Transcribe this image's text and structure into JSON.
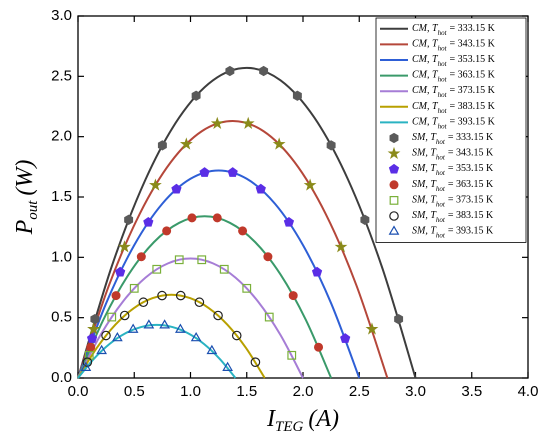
{
  "chart_data": {
    "type": "line",
    "x_label": {
      "main": "I",
      "sub": "TEG",
      "rest": "(A)"
    },
    "y_label": {
      "main": "P",
      "sub": "out",
      "rest": "(W)"
    },
    "xlim": [
      0,
      4
    ],
    "ylim": [
      0,
      3
    ],
    "xticks": [
      {
        "value": 0,
        "label": "0.0"
      },
      0.5,
      {
        "value": 1,
        "label": "1.0"
      },
      1.5,
      {
        "value": 2,
        "label": "2.0"
      },
      2.5,
      {
        "value": 3,
        "label": "3.0"
      },
      3.5,
      {
        "value": 4,
        "label": "4.0"
      }
    ],
    "yticks": [
      {
        "value": 0,
        "label": "0.0"
      },
      0.5,
      {
        "value": 1,
        "label": "1.0"
      },
      1.5,
      {
        "value": 2,
        "label": "2.0"
      },
      2.5,
      {
        "value": 3,
        "label": "3.0"
      }
    ],
    "grid": false,
    "legend": "upper right",
    "series": [
      {
        "type": "line",
        "name": "CM, T",
        "name_sub": "hot",
        "name_rest": "= 333.15 K",
        "color": "#3d3d3d",
        "x": [
          0,
          0.3,
          0.6,
          0.9,
          1.2,
          1.5,
          1.8,
          2.1,
          2.4,
          2.7,
          3.0
        ],
        "values": [
          0,
          0.925,
          1.645,
          2.159,
          2.467,
          2.57,
          2.467,
          2.159,
          1.645,
          0.925,
          0
        ]
      },
      {
        "type": "line",
        "name": "CM, T",
        "name_sub": "hot",
        "name_rest": "= 343.15 K",
        "color": "#b5473a",
        "x": [
          0,
          0.275,
          0.55,
          0.825,
          1.1,
          1.375,
          1.65,
          1.925,
          2.2,
          2.475,
          2.75
        ],
        "values": [
          0,
          0.767,
          1.363,
          1.789,
          2.045,
          2.13,
          2.045,
          1.789,
          1.363,
          0.767,
          0
        ]
      },
      {
        "type": "line",
        "name": "CM, T",
        "name_sub": "hot",
        "name_rest": "= 353.15 K",
        "color": "#2e5fd6",
        "x": [
          0,
          0.25,
          0.5,
          0.75,
          1.0,
          1.25,
          1.5,
          1.75,
          2.0,
          2.25,
          2.5
        ],
        "values": [
          0,
          0.619,
          1.101,
          1.445,
          1.651,
          1.72,
          1.651,
          1.445,
          1.101,
          0.619,
          0
        ]
      },
      {
        "type": "line",
        "name": "CM, T",
        "name_sub": "hot",
        "name_rest": "= 363.15 K",
        "color": "#3a9a6a",
        "x": [
          0,
          0.225,
          0.45,
          0.675,
          0.9,
          1.125,
          1.35,
          1.575,
          1.8,
          2.025,
          2.25
        ],
        "values": [
          0,
          0.482,
          0.858,
          1.126,
          1.286,
          1.34,
          1.286,
          1.126,
          0.858,
          0.482,
          0
        ]
      },
      {
        "type": "line",
        "name": "CM, T",
        "name_sub": "hot",
        "name_rest": "= 373.15 K",
        "color": "#a67dd6",
        "x": [
          0,
          0.2,
          0.4,
          0.6,
          0.8,
          1.0,
          1.2,
          1.4,
          1.6,
          1.8,
          2.0
        ],
        "values": [
          0,
          0.356,
          0.634,
          0.832,
          0.95,
          0.99,
          0.95,
          0.832,
          0.634,
          0.356,
          0
        ]
      },
      {
        "type": "line",
        "name": "CM, T",
        "name_sub": "hot",
        "name_rest": "= 383.15 K",
        "color": "#b8a000",
        "x": [
          0,
          0.166,
          0.332,
          0.498,
          0.664,
          0.83,
          0.996,
          1.162,
          1.328,
          1.494,
          1.66
        ],
        "values": [
          0,
          0.248,
          0.442,
          0.58,
          0.662,
          0.69,
          0.662,
          0.58,
          0.442,
          0.248,
          0
        ]
      },
      {
        "type": "line",
        "name": "CM, T",
        "name_sub": "hot",
        "name_rest": "= 393.15 K",
        "color": "#2ab3c2",
        "x": [
          0,
          0.14,
          0.28,
          0.42,
          0.56,
          0.7,
          0.84,
          0.98,
          1.12,
          1.26,
          1.4
        ],
        "values": [
          0,
          0.158,
          0.282,
          0.37,
          0.422,
          0.44,
          0.422,
          0.37,
          0.282,
          0.158,
          0
        ]
      },
      {
        "type": "scatter",
        "marker": "hexagon",
        "filled": true,
        "name": "SM, T",
        "name_sub": "hot",
        "name_rest": "= 333.15 K",
        "color": "#5a5a5a",
        "x": [
          0.15,
          0.45,
          0.75,
          1.05,
          1.35,
          1.65,
          1.95,
          2.25,
          2.55,
          2.85
        ],
        "values": [
          0.488,
          1.311,
          1.928,
          2.339,
          2.544,
          2.544,
          2.339,
          1.928,
          1.311,
          0.488
        ]
      },
      {
        "type": "scatter",
        "marker": "star",
        "filled": true,
        "name": "SM, T",
        "name_sub": "hot",
        "name_rest": "= 343.15 K",
        "color": "#8a8a1a",
        "x": [
          0.138,
          0.413,
          0.688,
          0.963,
          1.238,
          1.513,
          1.788,
          2.063,
          2.338,
          2.613
        ],
        "values": [
          0.405,
          1.086,
          1.598,
          1.938,
          2.109,
          2.109,
          1.938,
          1.598,
          1.086,
          0.405
        ]
      },
      {
        "type": "scatter",
        "marker": "pentagon",
        "filled": true,
        "name": "SM, T",
        "name_sub": "hot",
        "name_rest": "= 353.15 K",
        "color": "#5a2ee6",
        "x": [
          0.125,
          0.375,
          0.625,
          0.875,
          1.125,
          1.375,
          1.625,
          1.875,
          2.125,
          2.375
        ],
        "values": [
          0.327,
          0.877,
          1.29,
          1.565,
          1.703,
          1.703,
          1.565,
          1.29,
          0.877,
          0.327
        ]
      },
      {
        "type": "scatter",
        "marker": "circle",
        "filled": true,
        "name": "SM, T",
        "name_sub": "hot",
        "name_rest": "= 363.15 K",
        "color": "#c0392b",
        "x": [
          0.113,
          0.338,
          0.563,
          0.788,
          1.013,
          1.238,
          1.463,
          1.688,
          1.913,
          2.138
        ],
        "values": [
          0.255,
          0.683,
          1.005,
          1.219,
          1.327,
          1.327,
          1.219,
          1.005,
          0.683,
          0.255
        ]
      },
      {
        "type": "scatter",
        "marker": "square",
        "filled": false,
        "name": "SM, T",
        "name_sub": "hot",
        "name_rest": "= 373.15 K",
        "color": "#7ab03a",
        "x": [
          0.1,
          0.3,
          0.5,
          0.7,
          0.9,
          1.1,
          1.3,
          1.5,
          1.7,
          1.9
        ],
        "values": [
          0.188,
          0.505,
          0.743,
          0.901,
          0.98,
          0.98,
          0.901,
          0.743,
          0.505,
          0.188
        ]
      },
      {
        "type": "scatter",
        "marker": "circle",
        "filled": false,
        "name": "SM, T",
        "name_sub": "hot",
        "name_rest": "= 383.15 K",
        "color": "#222222",
        "x": [
          0.083,
          0.249,
          0.415,
          0.581,
          0.747,
          0.913,
          1.079,
          1.245,
          1.411,
          1.577
        ],
        "values": [
          0.131,
          0.352,
          0.518,
          0.628,
          0.683,
          0.683,
          0.628,
          0.518,
          0.352,
          0.131
        ]
      },
      {
        "type": "scatter",
        "marker": "triangle",
        "filled": false,
        "name": "SM, T",
        "name_sub": "hot",
        "name_rest": "= 393.15 K",
        "color": "#1a4fb0",
        "x": [
          0.07,
          0.21,
          0.35,
          0.49,
          0.63,
          0.77,
          0.91,
          1.05,
          1.19,
          1.33
        ],
        "values": [
          0.084,
          0.224,
          0.33,
          0.4,
          0.436,
          0.436,
          0.4,
          0.33,
          0.224,
          0.084
        ]
      }
    ]
  }
}
